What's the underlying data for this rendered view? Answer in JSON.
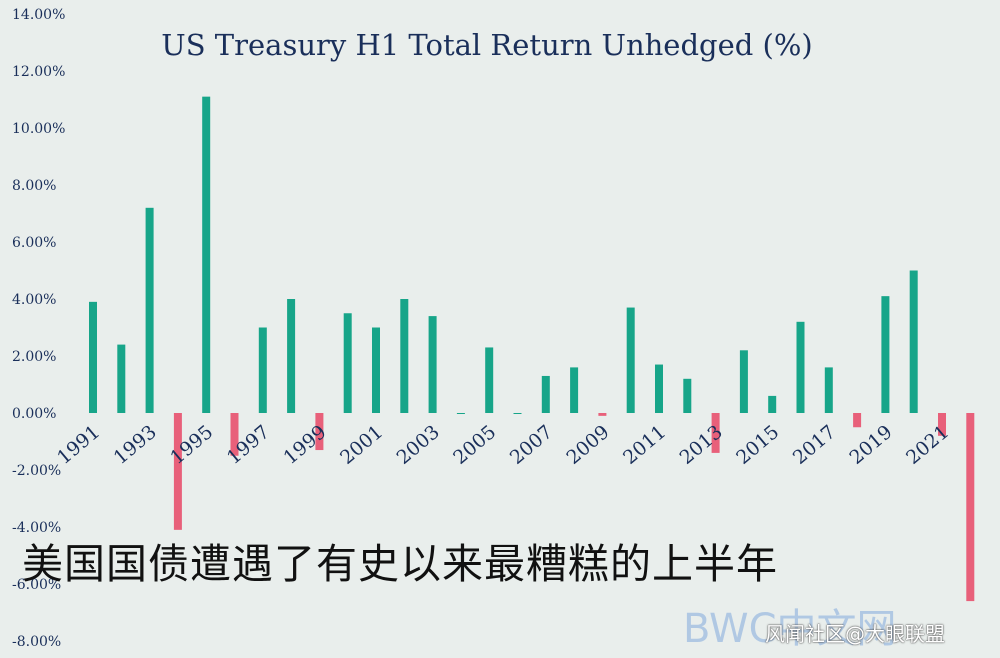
{
  "chart_data": {
    "type": "bar",
    "title": "US Treasury H1 Total Return Unhedged (%)",
    "xlabel": "",
    "ylabel": "",
    "ylim": [
      -8,
      14
    ],
    "yticks": [
      "14.00%",
      "12.00%",
      "10.00%",
      "8.00%",
      "6.00%",
      "4.00%",
      "2.00%",
      "0.00%",
      "-2.00%",
      "-4.00%",
      "-6.00%",
      "-8.00%"
    ],
    "ytick_values": [
      14,
      12,
      10,
      8,
      6,
      4,
      2,
      0,
      -2,
      -4,
      -6,
      -8
    ],
    "x_labels": [
      "1991",
      "1993",
      "1995",
      "1997",
      "1999",
      "2001",
      "2003",
      "2005",
      "2007",
      "2009",
      "2011",
      "2013",
      "2015",
      "2017",
      "2019",
      "2021"
    ],
    "categories": [
      "1991",
      "1992",
      "1993",
      "1994",
      "1995",
      "1996",
      "1997",
      "1998",
      "1999",
      "2000",
      "2001",
      "2002",
      "2003",
      "2004",
      "2005",
      "2006",
      "2007",
      "2008",
      "2009",
      "2010",
      "2011",
      "2012",
      "2013",
      "2014",
      "2015",
      "2016",
      "2017",
      "2018",
      "2019",
      "2020",
      "2021",
      "2022"
    ],
    "values": [
      3.9,
      2.4,
      7.2,
      -4.1,
      11.1,
      -1.5,
      3.0,
      4.0,
      -1.3,
      3.5,
      3.0,
      4.0,
      3.4,
      0.0,
      2.3,
      0.0,
      1.3,
      1.6,
      -0.1,
      3.7,
      1.7,
      1.2,
      -1.4,
      2.2,
      0.6,
      3.2,
      1.6,
      -0.5,
      4.1,
      5.0,
      -0.8,
      -6.6
    ],
    "colors": {
      "positive": "#17a589",
      "negative": "#e8607a"
    },
    "grid": false,
    "legend": "none"
  },
  "caption": "美国国债遭遇了有史以来最糟糕的上半年",
  "watermark": "BWC中文网",
  "credit": "风闻社区@大眼联盟"
}
